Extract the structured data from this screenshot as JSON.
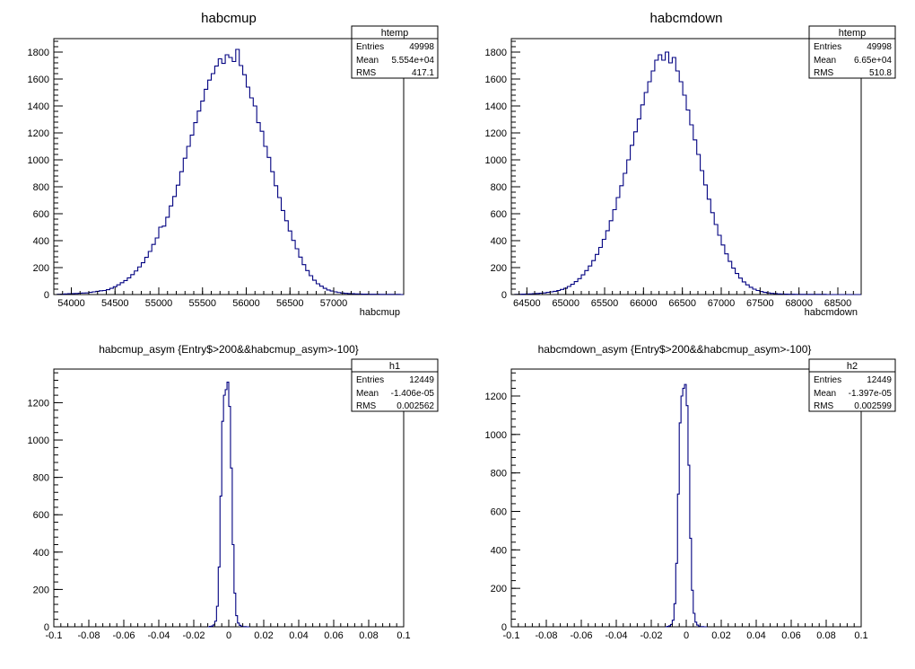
{
  "chart_data": [
    {
      "type": "histogram",
      "title": "habcmup",
      "xlabel": "habcmup",
      "ylabel": "",
      "xlim": [
        53800,
        57800
      ],
      "ylim": [
        0,
        1900
      ],
      "x_ticks": [
        "54000",
        "54500",
        "55000",
        "55500",
        "56000",
        "56500",
        "57000"
      ],
      "x_tick_values": [
        54000,
        54500,
        55000,
        55500,
        56000,
        56500,
        57000
      ],
      "y_ticks": [
        "0",
        "200",
        "400",
        "600",
        "800",
        "1000",
        "1200",
        "1400",
        "1600",
        "1800"
      ],
      "y_tick_values": [
        0,
        200,
        400,
        600,
        800,
        1000,
        1200,
        1400,
        1600,
        1800
      ],
      "stats": {
        "name": "htemp",
        "rows": [
          {
            "label": "Entries",
            "value": "49998"
          },
          {
            "label": "Mean",
            "value": "5.554e+04"
          },
          {
            "label": "RMS",
            "value": "417.1"
          }
        ]
      },
      "bins": {
        "low": 53800,
        "width": 40,
        "counts": [
          0,
          2,
          3,
          5,
          6,
          7,
          8,
          10,
          11,
          12,
          16,
          20,
          24,
          28,
          30,
          36,
          46,
          58,
          72,
          88,
          104,
          124,
          148,
          175,
          205,
          236,
          276,
          320,
          372,
          420,
          500,
          508,
          574,
          658,
          728,
          812,
          912,
          1012,
          1100,
          1184,
          1276,
          1362,
          1436,
          1524,
          1592,
          1640,
          1696,
          1750,
          1716,
          1780,
          1760,
          1730,
          1820,
          1700,
          1632,
          1540,
          1460,
          1400,
          1276,
          1212,
          1100,
          1018,
          912,
          808,
          720,
          624,
          548,
          472,
          402,
          340,
          278,
          222,
          178,
          140,
          106,
          80,
          62,
          46,
          34,
          26,
          20,
          15,
          11,
          9,
          7,
          6,
          5,
          4,
          3,
          3,
          2,
          2,
          2,
          1,
          1,
          1,
          1,
          1,
          1,
          0
        ]
      }
    },
    {
      "type": "histogram",
      "title": "habcmdown",
      "xlabel": "habcmdown",
      "ylabel": "",
      "xlim": [
        64300,
        68800
      ],
      "ylim": [
        0,
        1900
      ],
      "x_ticks": [
        "64500",
        "65000",
        "65500",
        "66000",
        "66500",
        "67000",
        "67500",
        "68000",
        "68500"
      ],
      "x_tick_values": [
        64500,
        65000,
        65500,
        66000,
        66500,
        67000,
        67500,
        68000,
        68500
      ],
      "y_ticks": [
        "0",
        "200",
        "400",
        "600",
        "800",
        "1000",
        "1200",
        "1400",
        "1600",
        "1800"
      ],
      "y_tick_values": [
        0,
        200,
        400,
        600,
        800,
        1000,
        1200,
        1400,
        1600,
        1800
      ],
      "stats": {
        "name": "htemp",
        "rows": [
          {
            "label": "Entries",
            "value": "49998"
          },
          {
            "label": "Mean",
            "value": "6.65e+04"
          },
          {
            "label": "RMS",
            "value": "510.8"
          }
        ]
      },
      "bins": {
        "low": 64300,
        "width": 45,
        "counts": [
          0,
          1,
          2,
          3,
          4,
          5,
          6,
          8,
          10,
          12,
          16,
          20,
          24,
          30,
          38,
          46,
          60,
          76,
          96,
          118,
          146,
          178,
          212,
          252,
          298,
          350,
          410,
          474,
          548,
          630,
          720,
          808,
          900,
          1000,
          1108,
          1208,
          1304,
          1408,
          1500,
          1580,
          1660,
          1740,
          1780,
          1740,
          1800,
          1720,
          1760,
          1660,
          1580,
          1480,
          1370,
          1260,
          1148,
          1040,
          920,
          814,
          708,
          608,
          520,
          440,
          368,
          302,
          246,
          196,
          156,
          122,
          94,
          72,
          54,
          40,
          30,
          22,
          16,
          12,
          9,
          7,
          5,
          4,
          3,
          2,
          2,
          1,
          1,
          1,
          1,
          1,
          1,
          1,
          1,
          1,
          0,
          0,
          0,
          0,
          0,
          0,
          0,
          0,
          0,
          0
        ]
      }
    },
    {
      "type": "histogram",
      "title": "habcmup_asym {Entry$>200&&habcmup_asym>-100}",
      "xlabel": "",
      "ylabel": "",
      "xlim": [
        -0.1,
        0.1
      ],
      "ylim": [
        0,
        1380
      ],
      "x_ticks": [
        "-0.1",
        "-0.08",
        "-0.06",
        "-0.04",
        "-0.02",
        "0",
        "0.02",
        "0.04",
        "0.06",
        "0.08",
        "0.1"
      ],
      "x_tick_values": [
        -0.1,
        -0.08,
        -0.06,
        -0.04,
        -0.02,
        0,
        0.02,
        0.04,
        0.06,
        0.08,
        0.1
      ],
      "y_ticks": [
        "0",
        "200",
        "400",
        "600",
        "800",
        "1000",
        "1200"
      ],
      "y_tick_values": [
        0,
        200,
        400,
        600,
        800,
        1000,
        1200
      ],
      "stats": {
        "name": "h1",
        "rows": [
          {
            "label": "Entries",
            "value": "12449"
          },
          {
            "label": "Mean",
            "value": "-1.406e-05"
          },
          {
            "label": "RMS",
            "value": "0.002562"
          }
        ]
      },
      "bins": {
        "low": -0.012,
        "width": 0.001,
        "counts": [
          0,
          2,
          4,
          10,
          30,
          110,
          320,
          700,
          1100,
          1240,
          1270,
          1310,
          1180,
          850,
          440,
          180,
          60,
          20,
          8,
          3,
          1,
          1,
          0,
          0
        ]
      }
    },
    {
      "type": "histogram",
      "title": "habcmdown_asym {Entry$>200&&habcmup_asym>-100}",
      "xlabel": "",
      "ylabel": "",
      "xlim": [
        -0.1,
        0.1
      ],
      "ylim": [
        0,
        1340
      ],
      "x_ticks": [
        "-0.1",
        "-0.08",
        "-0.06",
        "-0.04",
        "-0.02",
        "0",
        "0.02",
        "0.04",
        "0.06",
        "0.08",
        "0.1"
      ],
      "x_tick_values": [
        -0.1,
        -0.08,
        -0.06,
        -0.04,
        -0.02,
        0,
        0.02,
        0.04,
        0.06,
        0.08,
        0.1
      ],
      "y_ticks": [
        "0",
        "200",
        "400",
        "600",
        "800",
        "1000",
        "1200"
      ],
      "y_tick_values": [
        0,
        200,
        400,
        600,
        800,
        1000,
        1200
      ],
      "stats": {
        "name": "h2",
        "rows": [
          {
            "label": "Entries",
            "value": "12449"
          },
          {
            "label": "Mean",
            "value": "-1.397e-05"
          },
          {
            "label": "RMS",
            "value": "0.002599"
          }
        ]
      },
      "bins": {
        "low": -0.012,
        "width": 0.001,
        "counts": [
          0,
          2,
          5,
          12,
          34,
          120,
          330,
          690,
          1060,
          1200,
          1240,
          1260,
          1150,
          840,
          460,
          190,
          70,
          24,
          9,
          3,
          1,
          1,
          0,
          0
        ]
      }
    }
  ],
  "colors": {
    "histogram_line": "#000080",
    "frame": "#000000",
    "background": "#ffffff"
  }
}
